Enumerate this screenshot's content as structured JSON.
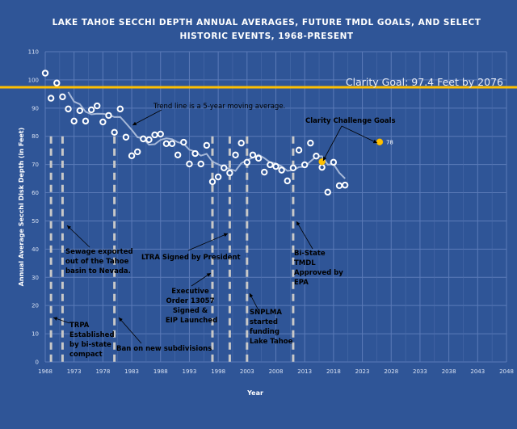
{
  "chart_data": {
    "type": "scatter",
    "title": [
      "LAKE TAHOE SECCHI DEPTH ANNUAL AVERAGES, FUTURE TMDL GOALS, AND SELECT",
      "HISTORIC EVENTS, 1968-PRESENT"
    ],
    "xlabel": "Year",
    "ylabel": "Annual Average Secchi Disk Depth (in Feet)",
    "xlim": [
      1968,
      2048
    ],
    "ylim": [
      0,
      110
    ],
    "x_ticks": [
      "1968",
      "1973",
      "1978",
      "1983",
      "1988",
      "1993",
      "1998",
      "2003",
      "2008",
      "2013",
      "2018",
      "2023",
      "2028",
      "2033",
      "2038",
      "2043",
      "2048"
    ],
    "y_ticks": [
      "0",
      "10",
      "20",
      "30",
      "40",
      "50",
      "60",
      "70",
      "80",
      "90",
      "100",
      "110"
    ],
    "grid": true,
    "series": [
      {
        "marker": "open-circle",
        "color": "#ffffff",
        "x": [
          1968,
          1969,
          1970,
          1971,
          1972,
          1973,
          1974,
          1975,
          1976,
          1977,
          1978,
          1979,
          1980,
          1981,
          1982,
          1983,
          1984,
          1985,
          1986,
          1987,
          1988,
          1989,
          1990,
          1991,
          1992,
          1993,
          1994,
          1995,
          1996,
          1997,
          1998,
          1999,
          2000,
          2001,
          2002,
          2003,
          2004,
          2005,
          2006,
          2007,
          2008,
          2009,
          2010,
          2011,
          2012,
          2013,
          2014,
          2015,
          2016,
          2017,
          2018,
          2019,
          2020
        ],
        "y": [
          102.4,
          93.5,
          98.9,
          94.0,
          89.7,
          85.4,
          89.1,
          85.4,
          89.4,
          90.8,
          85.1,
          87.4,
          81.4,
          89.7,
          79.7,
          73.1,
          74.5,
          79.1,
          78.8,
          80.5,
          80.8,
          77.4,
          77.4,
          73.4,
          77.9,
          70.2,
          73.9,
          70.2,
          76.8,
          63.9,
          65.6,
          68.8,
          67.0,
          73.4,
          77.6,
          70.8,
          73.4,
          72.2,
          67.3,
          69.9,
          69.3,
          68.0,
          64.2,
          68.8,
          75.1,
          69.9,
          77.6,
          73.0,
          69.0,
          60.2,
          70.8,
          62.5,
          62.7
        ]
      },
      {
        "name": "Clarity Challenge Goals",
        "marker": "filled-circle",
        "color": "#ffc000",
        "x": [
          2016,
          2026
        ],
        "y": [
          71,
          78
        ],
        "labels": [
          "",
          "78"
        ]
      }
    ],
    "trend": {
      "window": 5,
      "color": "#a6b8d8"
    },
    "goal_line": {
      "y": 97.4,
      "color": "#ffc000",
      "label": "Clarity Goal: 97.4 Feet by 2076"
    },
    "event_years": [
      1969,
      1971,
      1980,
      1997,
      2000,
      2003,
      2011
    ],
    "annotations": {
      "trend": "Trend line is a 5-year moving average.",
      "challenge": "Clarity Challenge Goals",
      "trpa": [
        "TRPA",
        "Established",
        "by bi-state",
        "compact"
      ],
      "sewage": [
        "Sewage exported",
        "out of the Tahoe",
        "basin to Nevada."
      ],
      "ban": "Ban on new subdivisions",
      "ltra": "LTRA Signed by President",
      "exec": [
        "Executive",
        "Order 13057",
        "Signed &",
        "EIP Launched"
      ],
      "snplma": [
        "SNPLMA",
        "started",
        "funding",
        "Lake Tahoe"
      ],
      "bistate": [
        "Bi-State",
        "TMDL",
        "Approved by",
        "EPA"
      ]
    }
  }
}
